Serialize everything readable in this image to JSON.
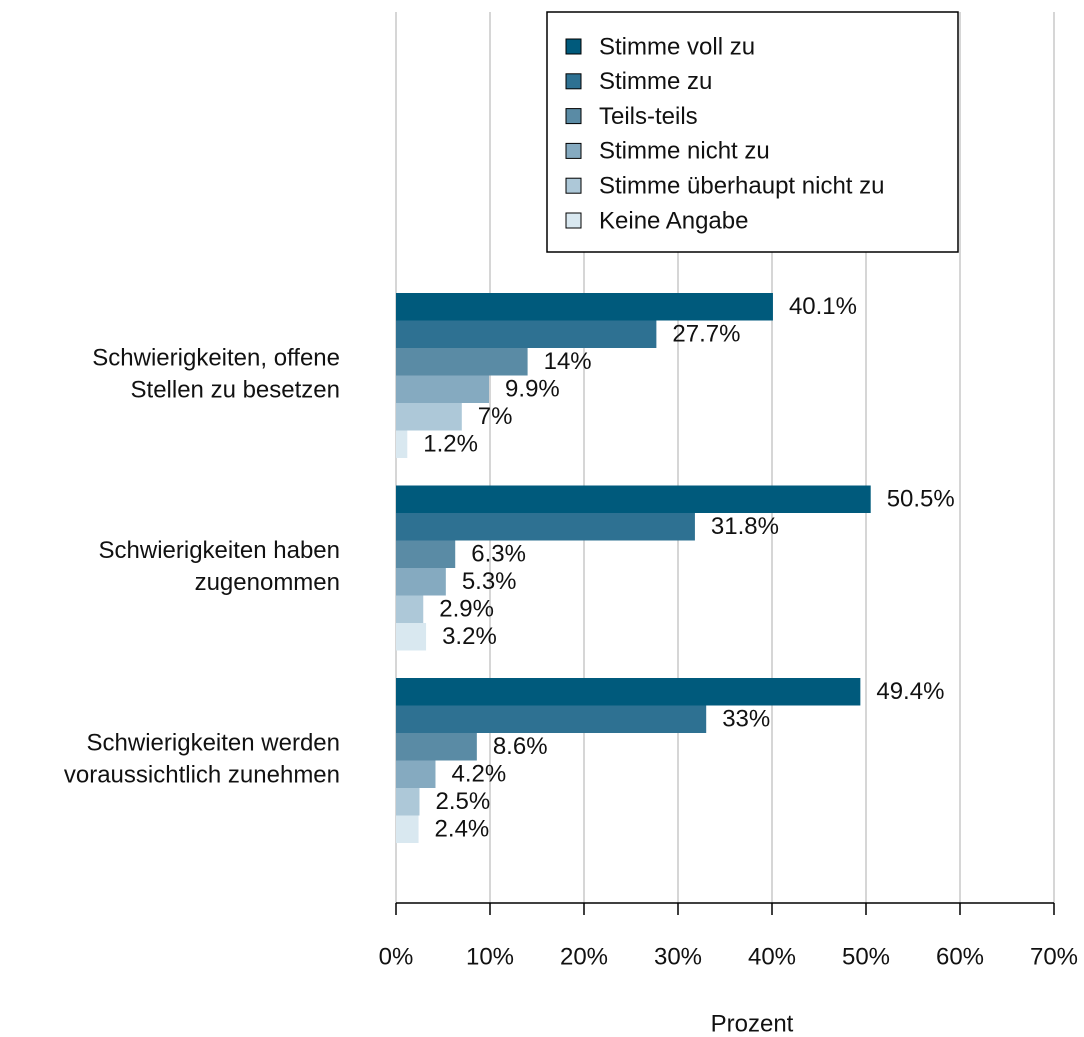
{
  "chart_data": {
    "type": "barh",
    "categories": [
      [
        "Schwierigkeiten, offene",
        "Stellen zu besetzen"
      ],
      [
        "Schwierigkeiten haben",
        "zugenommen"
      ],
      [
        "Schwierigkeiten werden",
        "voraussichtlich zunehmen"
      ]
    ],
    "series": [
      {
        "name": "Stimme voll zu",
        "color": "#005a7c",
        "values": [
          40.1,
          50.5,
          49.4
        ],
        "value_labels": [
          "40.1%",
          "50.5%",
          "49.4%"
        ]
      },
      {
        "name": "Stimme zu",
        "color": "#2e7192",
        "values": [
          27.7,
          31.8,
          33
        ],
        "value_labels": [
          "27.7%",
          "31.8%",
          "33%"
        ]
      },
      {
        "name": "Teils-teils",
        "color": "#5a8ba5",
        "values": [
          14,
          6.3,
          8.6
        ],
        "value_labels": [
          "14%",
          "6.3%",
          "8.6%"
        ]
      },
      {
        "name": "Stimme nicht zu",
        "color": "#85aac0",
        "values": [
          9.9,
          5.3,
          4.2
        ],
        "value_labels": [
          "9.9%",
          "5.3%",
          "4.2%"
        ]
      },
      {
        "name": "Stimme überhaupt nicht zu",
        "color": "#adc8d8",
        "values": [
          7,
          2.9,
          2.5
        ],
        "value_labels": [
          "7%",
          "2.9%",
          "2.5%"
        ]
      },
      {
        "name": "Keine Angabe",
        "color": "#d9e8f0",
        "values": [
          1.2,
          3.2,
          2.4
        ],
        "value_labels": [
          "1.2%",
          "3.2%",
          "2.4%"
        ]
      }
    ],
    "xlabel": "Prozent",
    "xlim": [
      0,
      70
    ],
    "xticks": [
      {
        "value": 0,
        "label": "0%"
      },
      {
        "value": 10,
        "label": "10%"
      },
      {
        "value": 20,
        "label": "20%"
      },
      {
        "value": 30,
        "label": "30%"
      },
      {
        "value": 40,
        "label": "40%"
      },
      {
        "value": 50,
        "label": "50%"
      },
      {
        "value": 60,
        "label": "60%"
      },
      {
        "value": 70,
        "label": "70%"
      }
    ],
    "grid": true,
    "legend": "top-right"
  }
}
